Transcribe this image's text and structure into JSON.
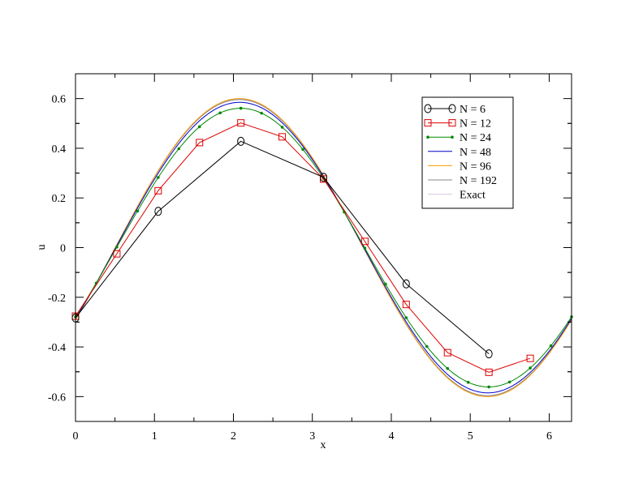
{
  "chart_data": {
    "type": "line",
    "title": "",
    "xlabel": "x",
    "ylabel": "u",
    "xlim": [
      0,
      6.2832
    ],
    "ylim": [
      -0.7,
      0.7
    ],
    "xticks": [
      0,
      1,
      2,
      3,
      4,
      5,
      6
    ],
    "yticks": [
      -0.6,
      -0.4,
      -0.2,
      0,
      0.2,
      0.4,
      0.6
    ],
    "xtick_labels": [
      "0",
      "1",
      "2",
      "3",
      "4",
      "5",
      "6"
    ],
    "ytick_labels": [
      "-0.6",
      "-0.4",
      "-0.2",
      "0",
      "0.2",
      "0.4",
      "0.6"
    ],
    "grid": false,
    "legend_position": "top-right",
    "series": [
      {
        "name": "N = 6",
        "color": "#000000",
        "marker": "circle",
        "x": [
          0,
          1.0472,
          2.0944,
          3.1416,
          4.1888,
          5.236
        ],
        "y": [
          -0.283,
          0.146,
          0.428,
          0.283,
          -0.146,
          -0.428
        ]
      },
      {
        "name": "N = 12",
        "color": "#dd0000",
        "marker": "square",
        "x": [
          0,
          0.5236,
          1.0472,
          1.5708,
          2.0944,
          2.618,
          3.1416,
          3.6652,
          4.1888,
          4.7124,
          5.236,
          5.7596
        ],
        "y": [
          -0.276,
          -0.025,
          0.229,
          0.423,
          0.502,
          0.446,
          0.276,
          0.025,
          -0.229,
          -0.423,
          -0.502,
          -0.446
        ]
      },
      {
        "name": "N = 24",
        "color": "#008800",
        "marker": "dot",
        "expr": {
          "amplitude": 0.561,
          "phase": -0.52
        }
      },
      {
        "name": "N = 48",
        "color": "#0000cc",
        "marker": "none",
        "expr": {
          "amplitude": 0.585,
          "phase": -0.51
        }
      },
      {
        "name": "N = 96",
        "color": "#ff9900",
        "marker": "none",
        "expr": {
          "amplitude": 0.6,
          "phase": -0.505
        }
      },
      {
        "name": "N = 192",
        "color": "#888888",
        "marker": "none",
        "expr": {
          "amplitude": 0.596,
          "phase": -0.505
        }
      },
      {
        "name": "Exact",
        "color": "#dcc8e8",
        "marker": "none",
        "expr": {
          "amplitude": 0.598,
          "phase": -0.505
        }
      }
    ]
  }
}
